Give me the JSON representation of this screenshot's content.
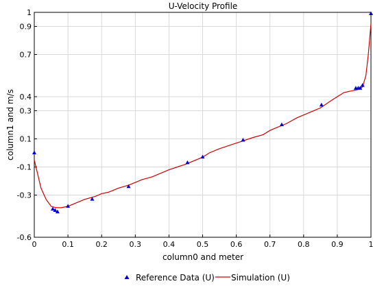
{
  "chart_data": {
    "type": "line",
    "title": "U-Velocity Profile",
    "xlabel": "column0 and meter",
    "ylabel": "column1 and m/s",
    "xlim": [
      0,
      1
    ],
    "ylim": [
      -0.6,
      1.0
    ],
    "xticks": [
      0,
      0.1,
      0.2,
      0.3,
      0.4,
      0.5,
      0.6,
      0.7,
      0.8,
      0.9,
      1
    ],
    "xtick_labels": [
      "0",
      "0.1",
      "0.2",
      "0.3",
      "0.4",
      "0.5",
      "0.6",
      "0.7",
      "0.8",
      "0.9",
      "1"
    ],
    "yticks": [
      -0.6,
      -0.3,
      -0.1,
      0.1,
      0.3,
      0.4,
      0.7,
      0.9,
      1.0
    ],
    "ytick_labels": [
      "-0.6",
      "-0.3",
      "-0.1",
      "0.1",
      "0.3",
      "0.4",
      "0.7",
      "0.9",
      "1"
    ],
    "grid": true,
    "legend_position": "bottom",
    "series": [
      {
        "name": "Reference Data (U)",
        "kind": "scatter",
        "marker": "triangle",
        "color": "#0000cc",
        "x": [
          0.0,
          0.055,
          0.062,
          0.069,
          0.1,
          0.172,
          0.28,
          0.455,
          0.5,
          0.62,
          0.735,
          0.853,
          0.955,
          0.962,
          0.968,
          0.975,
          1.0
        ],
        "y": [
          0.0,
          -0.4,
          -0.41,
          -0.42,
          -0.38,
          -0.33,
          -0.24,
          -0.07,
          -0.03,
          0.09,
          0.2,
          0.34,
          0.46,
          0.46,
          0.46,
          0.48,
          0.99
        ]
      },
      {
        "name": "Simulation (U)",
        "kind": "line",
        "color": "#cc0000",
        "x": [
          0.0,
          0.01,
          0.02,
          0.035,
          0.05,
          0.065,
          0.08,
          0.1,
          0.12,
          0.15,
          0.18,
          0.2,
          0.22,
          0.25,
          0.28,
          0.3,
          0.32,
          0.35,
          0.4,
          0.45,
          0.5,
          0.52,
          0.55,
          0.6,
          0.65,
          0.68,
          0.7,
          0.72,
          0.75,
          0.78,
          0.8,
          0.82,
          0.85,
          0.88,
          0.9,
          0.92,
          0.94,
          0.96,
          0.975,
          0.985,
          0.992,
          1.0
        ],
        "y": [
          -0.05,
          -0.15,
          -0.25,
          -0.33,
          -0.38,
          -0.39,
          -0.39,
          -0.38,
          -0.36,
          -0.33,
          -0.31,
          -0.29,
          -0.28,
          -0.25,
          -0.23,
          -0.21,
          -0.19,
          -0.17,
          -0.12,
          -0.08,
          -0.03,
          0.0,
          0.03,
          0.07,
          0.11,
          0.13,
          0.16,
          0.18,
          0.21,
          0.25,
          0.27,
          0.29,
          0.32,
          0.37,
          0.4,
          0.43,
          0.44,
          0.45,
          0.47,
          0.55,
          0.7,
          0.92
        ]
      }
    ]
  }
}
